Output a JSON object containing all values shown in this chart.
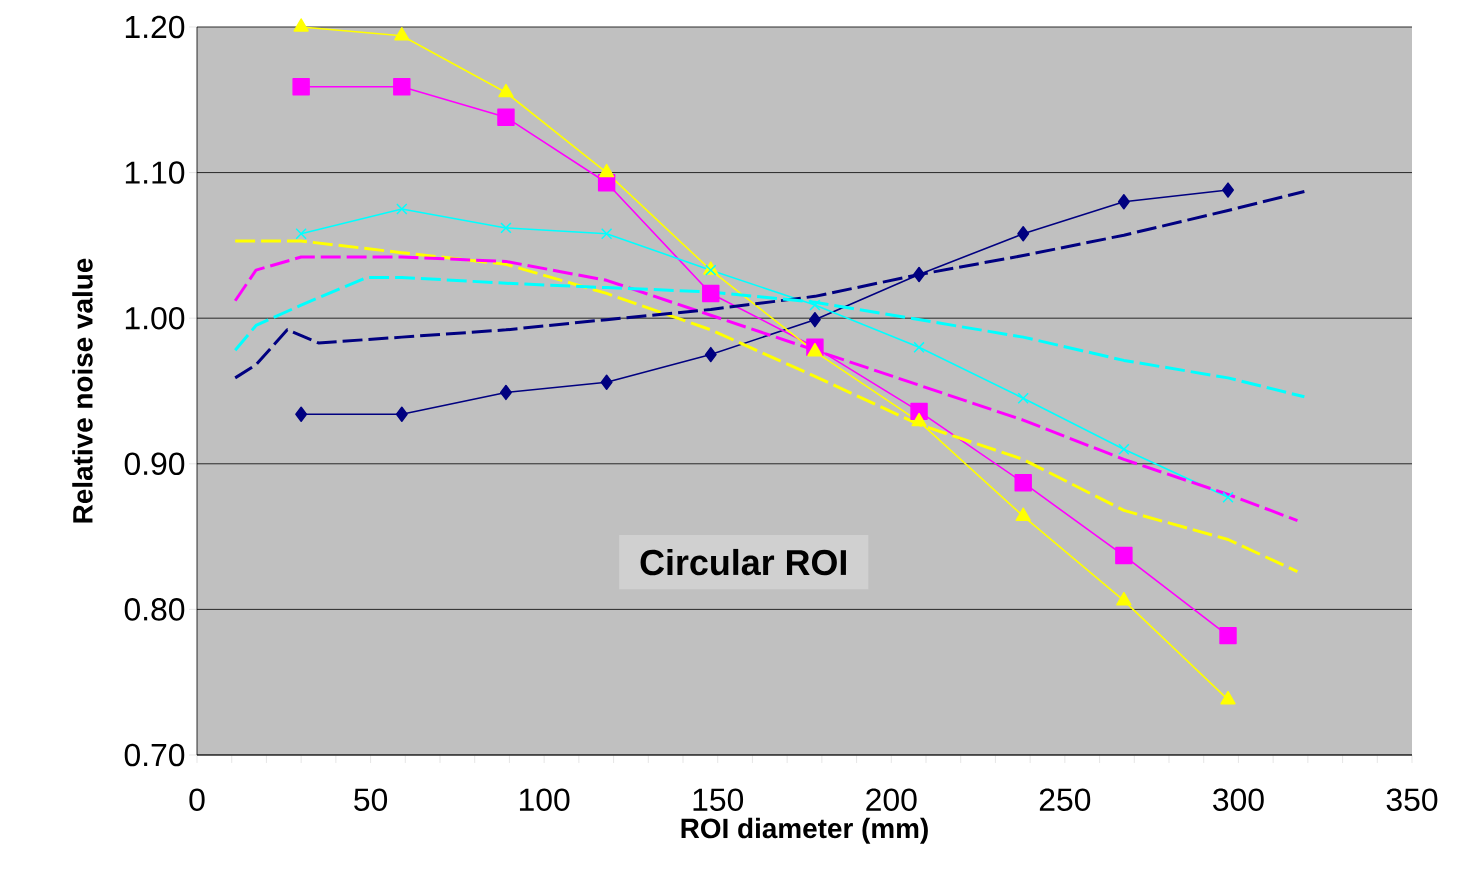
{
  "chart_data": {
    "type": "line",
    "xlabel": "ROI diameter (mm)",
    "ylabel": "Relative noise value",
    "xlim": [
      0,
      350
    ],
    "ylim": [
      0.7,
      1.2
    ],
    "xticks": [
      0,
      50,
      100,
      150,
      200,
      250,
      300,
      350
    ],
    "yticks": [
      {
        "value": 0.7,
        "label": "0.70"
      },
      {
        "value": 0.8,
        "label": "0.80"
      },
      {
        "value": 0.9,
        "label": "0.90"
      },
      {
        "value": 1.0,
        "label": "1.00"
      },
      {
        "value": 1.1,
        "label": "1.10"
      },
      {
        "value": 1.2,
        "label": "1.20"
      }
    ],
    "grid": "y",
    "annotations": [
      "Circular ROI"
    ],
    "series": [
      {
        "color": "#000080",
        "marker": "diamond",
        "line_style": "solid",
        "x": [
          30,
          59,
          89,
          118,
          148,
          178,
          208,
          238,
          267,
          297
        ],
        "values": [
          0.934,
          0.934,
          0.949,
          0.956,
          0.975,
          0.999,
          1.03,
          1.058,
          1.08,
          1.088
        ]
      },
      {
        "color": "#ff00ff",
        "marker": "square",
        "line_style": "solid",
        "x": [
          30,
          59,
          89,
          118,
          148,
          178,
          208,
          238,
          267,
          297
        ],
        "values": [
          1.159,
          1.159,
          1.138,
          1.093,
          1.017,
          0.98,
          0.936,
          0.887,
          0.837,
          0.782
        ]
      },
      {
        "color": "#ffff00",
        "marker": "triangle",
        "line_style": "solid",
        "x": [
          30,
          59,
          89,
          118,
          148,
          178,
          208,
          238,
          267,
          297
        ],
        "values": [
          1.2,
          1.194,
          1.155,
          1.1,
          1.033,
          0.977,
          0.929,
          0.864,
          0.806,
          0.738
        ]
      },
      {
        "color": "#00ffff",
        "marker": "cross",
        "line_style": "solid",
        "x": [
          30,
          59,
          89,
          118,
          148,
          178,
          208,
          238,
          267,
          297
        ],
        "values": [
          1.058,
          1.075,
          1.062,
          1.058,
          1.033,
          1.009,
          0.98,
          0.945,
          0.91,
          0.877
        ]
      },
      {
        "color": "#ffff00",
        "marker": "none",
        "line_style": "dashed",
        "x": [
          11,
          30,
          59,
          89,
          118,
          148,
          178,
          208,
          238,
          267,
          297,
          317
        ],
        "values": [
          1.053,
          1.053,
          1.045,
          1.037,
          1.017,
          0.992,
          0.96,
          0.927,
          0.903,
          0.868,
          0.848,
          0.826
        ]
      },
      {
        "color": "#ff00ff",
        "marker": "none",
        "line_style": "dashed",
        "x": [
          11,
          17,
          30,
          59,
          89,
          118,
          148,
          178,
          208,
          238,
          267,
          297,
          317
        ],
        "values": [
          1.012,
          1.033,
          1.042,
          1.042,
          1.039,
          1.026,
          1.002,
          0.978,
          0.954,
          0.93,
          0.903,
          0.879,
          0.861
        ]
      },
      {
        "color": "#000080",
        "marker": "none",
        "line_style": "dashed",
        "x": [
          11,
          17,
          26,
          35,
          59,
          89,
          118,
          148,
          178,
          208,
          238,
          267,
          297,
          319
        ],
        "values": [
          0.959,
          0.968,
          0.992,
          0.983,
          0.987,
          0.992,
          0.999,
          1.006,
          1.015,
          1.03,
          1.043,
          1.057,
          1.074,
          1.087
        ]
      },
      {
        "color": "#00ffff",
        "marker": "none",
        "line_style": "dashed",
        "x": [
          11,
          17,
          30,
          49,
          59,
          89,
          118,
          148,
          178,
          208,
          238,
          267,
          297,
          319
        ],
        "values": [
          0.978,
          0.995,
          1.009,
          1.028,
          1.028,
          1.024,
          1.021,
          1.018,
          1.011,
          0.999,
          0.987,
          0.971,
          0.959,
          0.946
        ]
      }
    ]
  }
}
